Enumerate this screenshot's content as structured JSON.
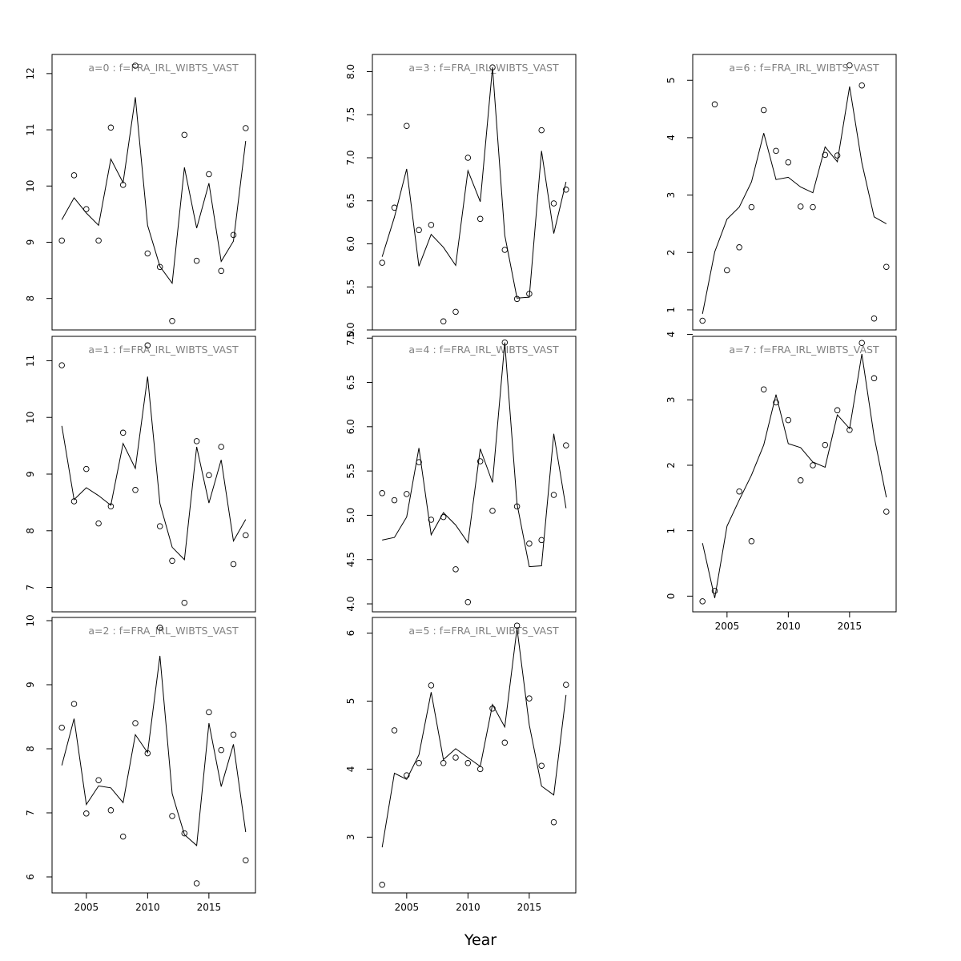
{
  "figure": {
    "xlabel": "Year",
    "colors": {
      "axis": "#000000",
      "text": "#000000",
      "panel_title": "#808080",
      "line": "#000000",
      "points": "#000000"
    }
  },
  "chart_data": [
    {
      "type": "line",
      "title": "a=0 : f=FRA_IRL_WIBTS_VAST",
      "xlim": [
        2002.2,
        2018.8
      ],
      "ylim": [
        7.44,
        12.34
      ],
      "x_ticks": [],
      "y_ticks": [
        8,
        9,
        10,
        11,
        12
      ],
      "x": [
        2003,
        2004,
        2005,
        2006,
        2007,
        2008,
        2009,
        2010,
        2011,
        2012,
        2013,
        2014,
        2015,
        2016,
        2017,
        2018
      ],
      "series": [
        {
          "kind": "line",
          "values": [
            9.4,
            9.79,
            9.52,
            9.3,
            10.48,
            10.06,
            11.58,
            9.3,
            8.57,
            8.27,
            10.33,
            9.25,
            10.05,
            8.66,
            9.02,
            10.8
          ]
        },
        {
          "kind": "points",
          "values": [
            9.03,
            10.19,
            9.59,
            9.03,
            11.04,
            10.02,
            12.14,
            8.8,
            8.56,
            7.6,
            10.91,
            8.67,
            10.21,
            8.49,
            9.13,
            11.03
          ]
        }
      ]
    },
    {
      "type": "line",
      "title": "a=1 : f=FRA_IRL_WIBTS_VAST",
      "xlim": [
        2002.2,
        2018.8
      ],
      "ylim": [
        6.57,
        11.43
      ],
      "x_ticks": [],
      "y_ticks": [
        7,
        8,
        9,
        10,
        11
      ],
      "x": [
        2003,
        2004,
        2005,
        2006,
        2007,
        2008,
        2009,
        2010,
        2011,
        2012,
        2013,
        2014,
        2015,
        2016,
        2017,
        2018
      ],
      "series": [
        {
          "kind": "line",
          "values": [
            9.85,
            8.55,
            8.76,
            8.62,
            8.45,
            9.54,
            9.1,
            10.72,
            8.48,
            7.71,
            7.49,
            9.48,
            8.49,
            9.25,
            7.82,
            8.2
          ]
        },
        {
          "kind": "points",
          "values": [
            10.92,
            8.52,
            9.09,
            8.13,
            8.43,
            9.73,
            8.72,
            11.27,
            8.08,
            7.47,
            6.73,
            9.58,
            8.98,
            9.48,
            7.41,
            7.92
          ]
        }
      ]
    },
    {
      "type": "line",
      "title": "a=2 : f=FRA_IRL_WIBTS_VAST",
      "xlim": [
        2002.2,
        2018.8
      ],
      "ylim": [
        5.75,
        10.05
      ],
      "x_ticks": [
        2005,
        2010,
        2015
      ],
      "y_ticks": [
        6,
        7,
        8,
        9,
        10
      ],
      "x": [
        2003,
        2004,
        2005,
        2006,
        2007,
        2008,
        2009,
        2010,
        2011,
        2012,
        2013,
        2014,
        2015,
        2016,
        2017,
        2018
      ],
      "series": [
        {
          "kind": "line",
          "values": [
            7.74,
            8.47,
            7.13,
            7.42,
            7.39,
            7.16,
            8.22,
            7.94,
            9.45,
            7.3,
            6.66,
            6.49,
            8.4,
            7.41,
            8.07,
            6.7
          ]
        },
        {
          "kind": "points",
          "values": [
            8.33,
            8.7,
            6.99,
            7.51,
            7.04,
            6.63,
            8.4,
            7.93,
            9.89,
            6.95,
            6.68,
            5.9,
            8.57,
            7.98,
            8.22,
            6.26
          ]
        }
      ]
    },
    {
      "type": "line",
      "title": "a=3 : f=FRA_IRL_WIBTS_VAST",
      "xlim": [
        2002.2,
        2018.8
      ],
      "ylim": [
        5.0,
        8.2
      ],
      "x_ticks": [],
      "y_ticks": [
        5.0,
        5.5,
        6.0,
        6.5,
        7.0,
        7.5,
        8.0
      ],
      "x": [
        2003,
        2004,
        2005,
        2006,
        2007,
        2008,
        2009,
        2010,
        2011,
        2012,
        2013,
        2014,
        2015,
        2016,
        2017,
        2018
      ],
      "series": [
        {
          "kind": "line",
          "values": [
            5.85,
            6.31,
            6.87,
            5.74,
            6.11,
            5.96,
            5.75,
            6.85,
            6.49,
            8.05,
            6.1,
            5.37,
            5.38,
            7.08,
            6.12,
            6.72
          ]
        },
        {
          "kind": "points",
          "values": [
            5.78,
            6.42,
            7.37,
            6.16,
            6.22,
            5.1,
            5.21,
            7.0,
            6.29,
            8.05,
            5.93,
            5.36,
            5.42,
            7.32,
            6.47,
            6.63
          ]
        }
      ]
    },
    {
      "type": "line",
      "title": "a=4 : f=FRA_IRL_WIBTS_VAST",
      "xlim": [
        2002.2,
        2018.8
      ],
      "ylim": [
        3.91,
        7.02
      ],
      "x_ticks": [],
      "y_ticks": [
        4.0,
        4.5,
        5.0,
        5.5,
        6.0,
        6.5,
        7.0
      ],
      "x": [
        2003,
        2004,
        2005,
        2006,
        2007,
        2008,
        2009,
        2010,
        2011,
        2012,
        2013,
        2014,
        2015,
        2016,
        2017,
        2018
      ],
      "series": [
        {
          "kind": "line",
          "values": [
            4.72,
            4.75,
            4.98,
            5.76,
            4.78,
            5.03,
            4.89,
            4.69,
            5.75,
            5.37,
            6.95,
            5.13,
            4.42,
            4.43,
            5.92,
            5.08
          ]
        },
        {
          "kind": "points",
          "values": [
            5.25,
            5.17,
            5.24,
            5.6,
            4.95,
            4.98,
            4.39,
            4.02,
            5.61,
            5.05,
            6.95,
            5.1,
            4.68,
            4.72,
            5.23,
            5.79
          ]
        }
      ]
    },
    {
      "type": "line",
      "title": "a=5 : f=FRA_IRL_WIBTS_VAST",
      "xlim": [
        2002.2,
        2018.8
      ],
      "ylim": [
        2.18,
        6.23
      ],
      "x_ticks": [
        2005,
        2010,
        2015
      ],
      "y_ticks": [
        3,
        4,
        5,
        6
      ],
      "x": [
        2003,
        2004,
        2005,
        2006,
        2007,
        2008,
        2009,
        2010,
        2011,
        2012,
        2013,
        2014,
        2015,
        2016,
        2017,
        2018
      ],
      "series": [
        {
          "kind": "line",
          "values": [
            2.85,
            3.94,
            3.85,
            4.21,
            5.13,
            4.14,
            4.3,
            4.17,
            4.04,
            4.95,
            4.62,
            6.07,
            4.65,
            3.75,
            3.62,
            5.09
          ]
        },
        {
          "kind": "points",
          "values": [
            2.3,
            4.57,
            3.91,
            4.09,
            5.23,
            4.09,
            4.17,
            4.09,
            4.0,
            4.89,
            4.39,
            6.11,
            5.04,
            4.05,
            3.22,
            5.24
          ]
        }
      ]
    },
    {
      "type": "line",
      "title": "a=6 : f=FRA_IRL_WIBTS_VAST",
      "xlim": [
        2002.2,
        2018.8
      ],
      "ylim": [
        0.65,
        5.45
      ],
      "x_ticks": [],
      "y_ticks": [
        1,
        2,
        3,
        4,
        5
      ],
      "x": [
        2003,
        2004,
        2005,
        2006,
        2007,
        2008,
        2009,
        2010,
        2011,
        2012,
        2013,
        2014,
        2015,
        2016,
        2017,
        2018
      ],
      "series": [
        {
          "kind": "line",
          "values": [
            0.93,
            2.01,
            2.58,
            2.79,
            3.23,
            4.08,
            3.27,
            3.31,
            3.14,
            3.04,
            3.84,
            3.58,
            4.89,
            3.56,
            2.62,
            2.5
          ]
        },
        {
          "kind": "points",
          "values": [
            0.81,
            4.58,
            1.69,
            2.09,
            2.79,
            4.48,
            3.77,
            3.57,
            2.8,
            2.79,
            3.7,
            3.69,
            5.26,
            4.91,
            0.85,
            1.75
          ]
        }
      ]
    },
    {
      "type": "line",
      "title": "a=7 : f=FRA_IRL_WIBTS_VAST",
      "xlim": [
        2002.2,
        2018.8
      ],
      "ylim": [
        -0.24,
        3.97
      ],
      "x_ticks": [
        2005,
        2010,
        2015
      ],
      "y_ticks": [
        0,
        1,
        2,
        3,
        4
      ],
      "x": [
        2003,
        2004,
        2005,
        2006,
        2007,
        2008,
        2009,
        2010,
        2011,
        2012,
        2013,
        2014,
        2015,
        2016,
        2017,
        2018
      ],
      "series": [
        {
          "kind": "line",
          "values": [
            0.81,
            -0.03,
            1.07,
            1.47,
            1.85,
            2.31,
            3.08,
            2.33,
            2.27,
            2.05,
            1.97,
            2.77,
            2.56,
            3.7,
            2.44,
            1.51
          ]
        },
        {
          "kind": "points",
          "values": [
            -0.08,
            0.08,
            null,
            1.6,
            0.84,
            3.16,
            2.96,
            2.69,
            1.77,
            2.0,
            2.31,
            2.84,
            2.54,
            3.87,
            3.33,
            1.29
          ]
        }
      ]
    }
  ]
}
